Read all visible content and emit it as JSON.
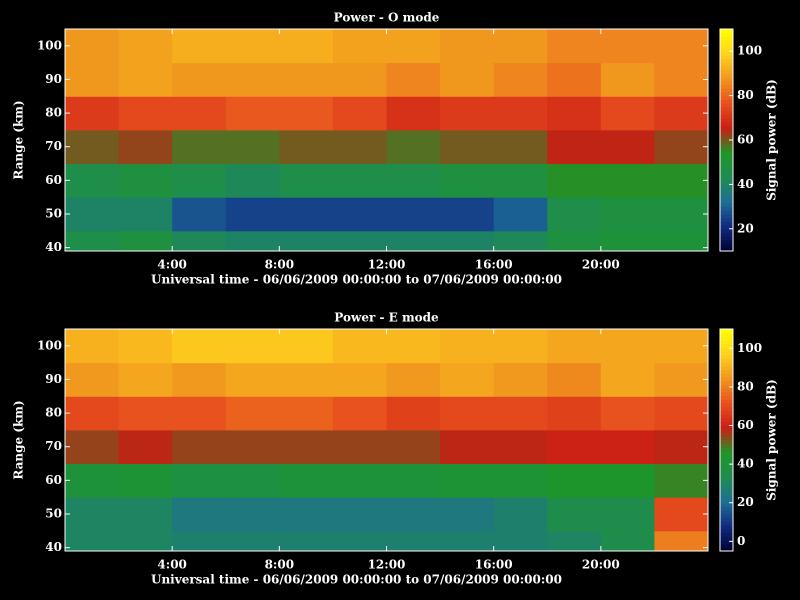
{
  "chart_data": [
    {
      "type": "heatmap",
      "title": "Power - O mode",
      "xlabel": "Universal time - 06/06/2009 00:00:00 to 07/06/2009 00:00:00",
      "ylabel": "Range (km)",
      "colorbar_label": "Signal power (dB)",
      "x_bins": [
        0,
        2,
        4,
        6,
        8,
        10,
        12,
        14,
        16,
        18,
        20,
        22,
        24
      ],
      "y_bins": [
        39,
        45,
        55,
        65,
        75,
        85,
        95,
        105
      ],
      "z": [
        [
          45,
          48,
          42,
          40,
          40,
          40,
          40,
          40,
          42,
          48,
          50,
          50
        ],
        [
          40,
          40,
          28,
          25,
          25,
          25,
          25,
          25,
          30,
          45,
          48,
          48
        ],
        [
          45,
          48,
          45,
          42,
          45,
          45,
          45,
          48,
          48,
          55,
          55,
          55
        ],
        [
          60,
          62,
          58,
          58,
          60,
          60,
          58,
          60,
          60,
          65,
          65,
          62
        ],
        [
          72,
          75,
          75,
          78,
          78,
          75,
          70,
          72,
          72,
          70,
          75,
          72
        ],
        [
          88,
          90,
          88,
          88,
          88,
          88,
          85,
          88,
          85,
          82,
          88,
          85
        ],
        [
          88,
          90,
          92,
          92,
          92,
          90,
          90,
          88,
          88,
          85,
          85,
          85
        ]
      ],
      "xlim": [
        0,
        24
      ],
      "xticks": [
        {
          "value": 4,
          "label": "4:00"
        },
        {
          "value": 8,
          "label": "8:00"
        },
        {
          "value": 12,
          "label": "12:00"
        },
        {
          "value": 16,
          "label": "16:00"
        },
        {
          "value": 20,
          "label": "20:00"
        }
      ],
      "ylim": [
        39,
        105
      ],
      "yticks": [
        40,
        50,
        60,
        70,
        80,
        90,
        100
      ],
      "clim": [
        10,
        110
      ],
      "cticks": [
        20,
        40,
        60,
        80,
        100
      ],
      "colormap": [
        "#000030",
        "#102a80",
        "#1e6e96",
        "#1e8c50",
        "#1e9628",
        "#c81e14",
        "#e8501e",
        "#f0961e",
        "#ffd21e",
        "#ffff00"
      ]
    },
    {
      "type": "heatmap",
      "title": "Power - E mode",
      "xlabel": "Universal time - 06/06/2009 00:00:00 to 07/06/2009 00:00:00",
      "ylabel": "Range (km)",
      "colorbar_label": "Signal power (dB)",
      "x_bins": [
        0,
        2,
        4,
        6,
        8,
        10,
        12,
        14,
        16,
        18,
        20,
        22,
        24
      ],
      "y_bins": [
        39,
        45,
        55,
        65,
        75,
        85,
        95,
        105
      ],
      "z": [
        [
          30,
          30,
          28,
          28,
          28,
          28,
          28,
          28,
          28,
          30,
          35,
          80
        ],
        [
          30,
          30,
          25,
          25,
          25,
          25,
          25,
          25,
          28,
          35,
          35,
          70
        ],
        [
          40,
          42,
          38,
          38,
          40,
          40,
          40,
          42,
          42,
          45,
          45,
          48
        ],
        [
          55,
          58,
          55,
          55,
          55,
          55,
          55,
          58,
          58,
          60,
          60,
          58
        ],
        [
          70,
          72,
          72,
          75,
          75,
          72,
          68,
          70,
          70,
          68,
          72,
          70
        ],
        [
          85,
          88,
          85,
          88,
          88,
          88,
          85,
          88,
          85,
          82,
          88,
          85
        ],
        [
          90,
          92,
          95,
          95,
          95,
          92,
          92,
          90,
          90,
          88,
          88,
          88
        ]
      ],
      "xlim": [
        0,
        24
      ],
      "xticks": [
        {
          "value": 4,
          "label": "4:00"
        },
        {
          "value": 8,
          "label": "8:00"
        },
        {
          "value": 12,
          "label": "12:00"
        },
        {
          "value": 16,
          "label": "16:00"
        },
        {
          "value": 20,
          "label": "20:00"
        }
      ],
      "ylim": [
        39,
        105
      ],
      "yticks": [
        40,
        50,
        60,
        70,
        80,
        90,
        100
      ],
      "clim": [
        -5,
        110
      ],
      "cticks": [
        0,
        20,
        40,
        60,
        80,
        100
      ],
      "colormap": [
        "#000030",
        "#102a80",
        "#1e6e96",
        "#1e8c50",
        "#1e9628",
        "#c81e14",
        "#e8501e",
        "#f0961e",
        "#ffd21e",
        "#ffff00"
      ]
    }
  ]
}
